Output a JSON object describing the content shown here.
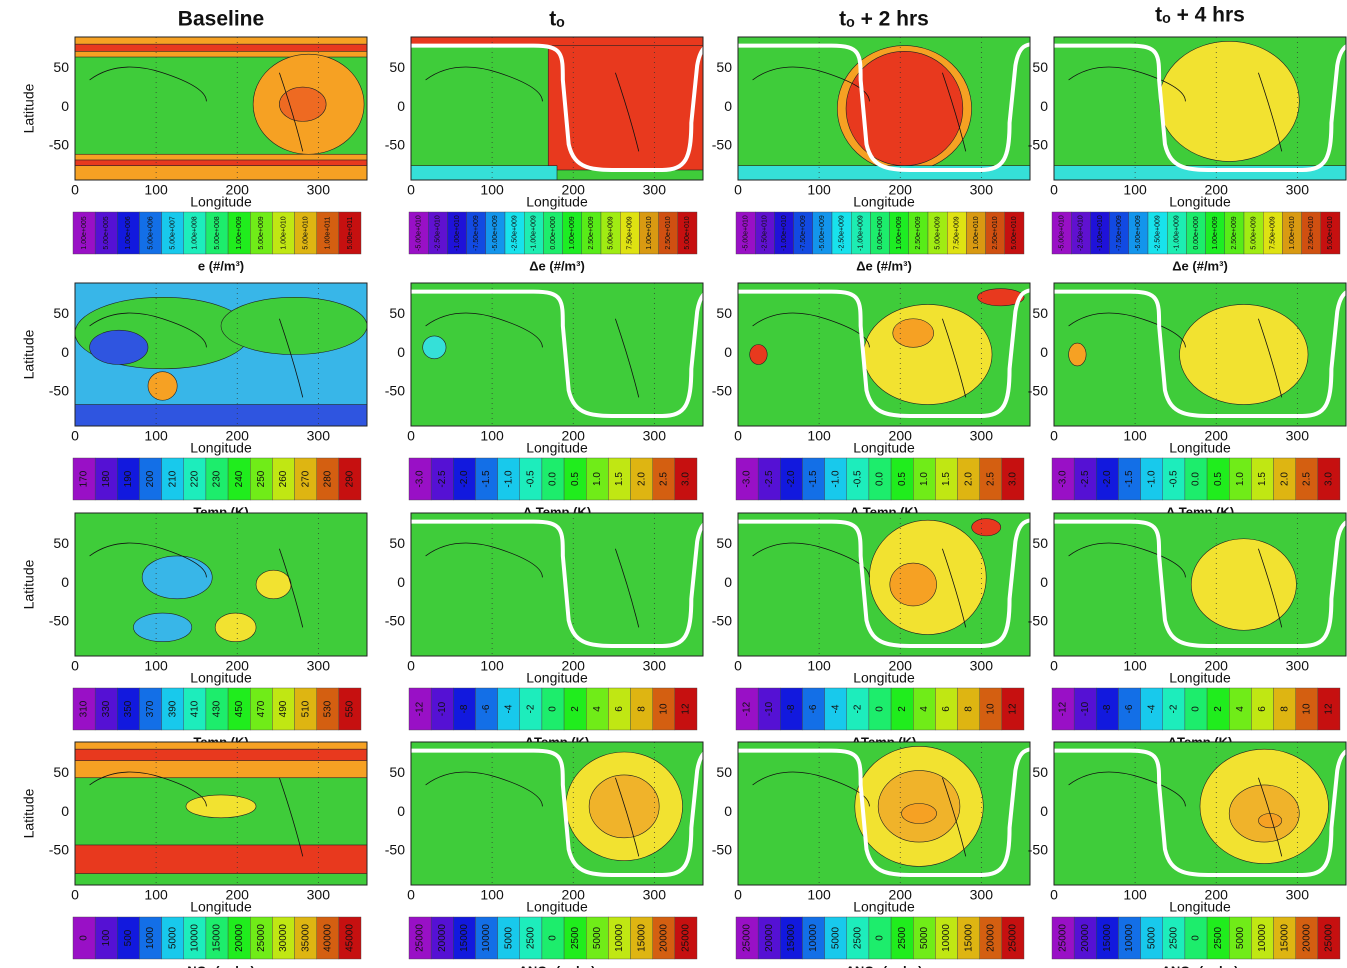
{
  "column_titles": [
    "Baseline",
    "tₒ",
    "tₒ + 2 hrs",
    "tₒ + 4 hrs"
  ],
  "map_axes": {
    "x_label": "Longitude",
    "y_label": "Latitude",
    "xticks": [
      "0",
      "100",
      "200",
      "300"
    ],
    "yticks": [
      "50",
      "0",
      "-50"
    ]
  },
  "rows": [
    {
      "baseline_colorbar": {
        "title": "e (#/m³)",
        "labels": [
          "1.00e+005",
          "5.00e+005",
          "1.00e+006",
          "5.00e+006",
          "5.00e+007",
          "1.00e+008",
          "5.00e+008",
          "1.00e+009",
          "5.00e+009",
          "1.00e+010",
          "5.00e+010",
          "1.00e+011",
          "5.00e+011"
        ]
      },
      "delta_colorbar": {
        "title": "Δe (#/m³)",
        "labels": [
          "-5.00e+010",
          "-2.50e+010",
          "-1.00e+010",
          "-7.50e+009",
          "-5.00e+009",
          "-2.50e+009",
          "-1.00e+009",
          "0.00e+000",
          "1.00e+009",
          "2.50e+009",
          "5.00e+009",
          "7.50e+009",
          "1.00e+010",
          "2.50e+010",
          "5.00e+010"
        ]
      }
    },
    {
      "baseline_colorbar": {
        "title": "Temp (K)",
        "labels": [
          "170",
          "180",
          "190",
          "200",
          "210",
          "220",
          "230",
          "240",
          "250",
          "260",
          "270",
          "280",
          "290"
        ]
      },
      "delta_colorbar": {
        "title": "Δ Temp (K)",
        "labels": [
          "-3.0",
          "-2.5",
          "-2.0",
          "-1.5",
          "-1.0",
          "-0.5",
          "0.0",
          "0.5",
          "1.0",
          "1.5",
          "2.0",
          "2.5",
          "3.0"
        ]
      }
    },
    {
      "baseline_colorbar": {
        "title": "Temp (K)",
        "labels": [
          "310",
          "330",
          "350",
          "370",
          "390",
          "410",
          "430",
          "450",
          "470",
          "490",
          "510",
          "530",
          "550"
        ]
      },
      "delta_colorbar": {
        "title": "ΔTemp (K)",
        "labels": [
          "-12",
          "-10",
          "-8",
          "-6",
          "-4",
          "-2",
          "0",
          "2",
          "4",
          "6",
          "8",
          "10",
          "12"
        ]
      }
    },
    {
      "baseline_colorbar": {
        "title": "NOₓ (ppbv)",
        "labels": [
          "0",
          "100",
          "500",
          "1000",
          "5000",
          "10000",
          "15000",
          "20000",
          "25000",
          "30000",
          "35000",
          "40000",
          "45000"
        ]
      },
      "delta_colorbar": {
        "title": "ΔNOₓ (ppbv)",
        "labels": [
          "25000",
          "20000",
          "15000",
          "10000",
          "5000",
          "2500",
          "0",
          "2500",
          "5000",
          "10000",
          "15000",
          "20000",
          "25000"
        ]
      }
    }
  ]
}
